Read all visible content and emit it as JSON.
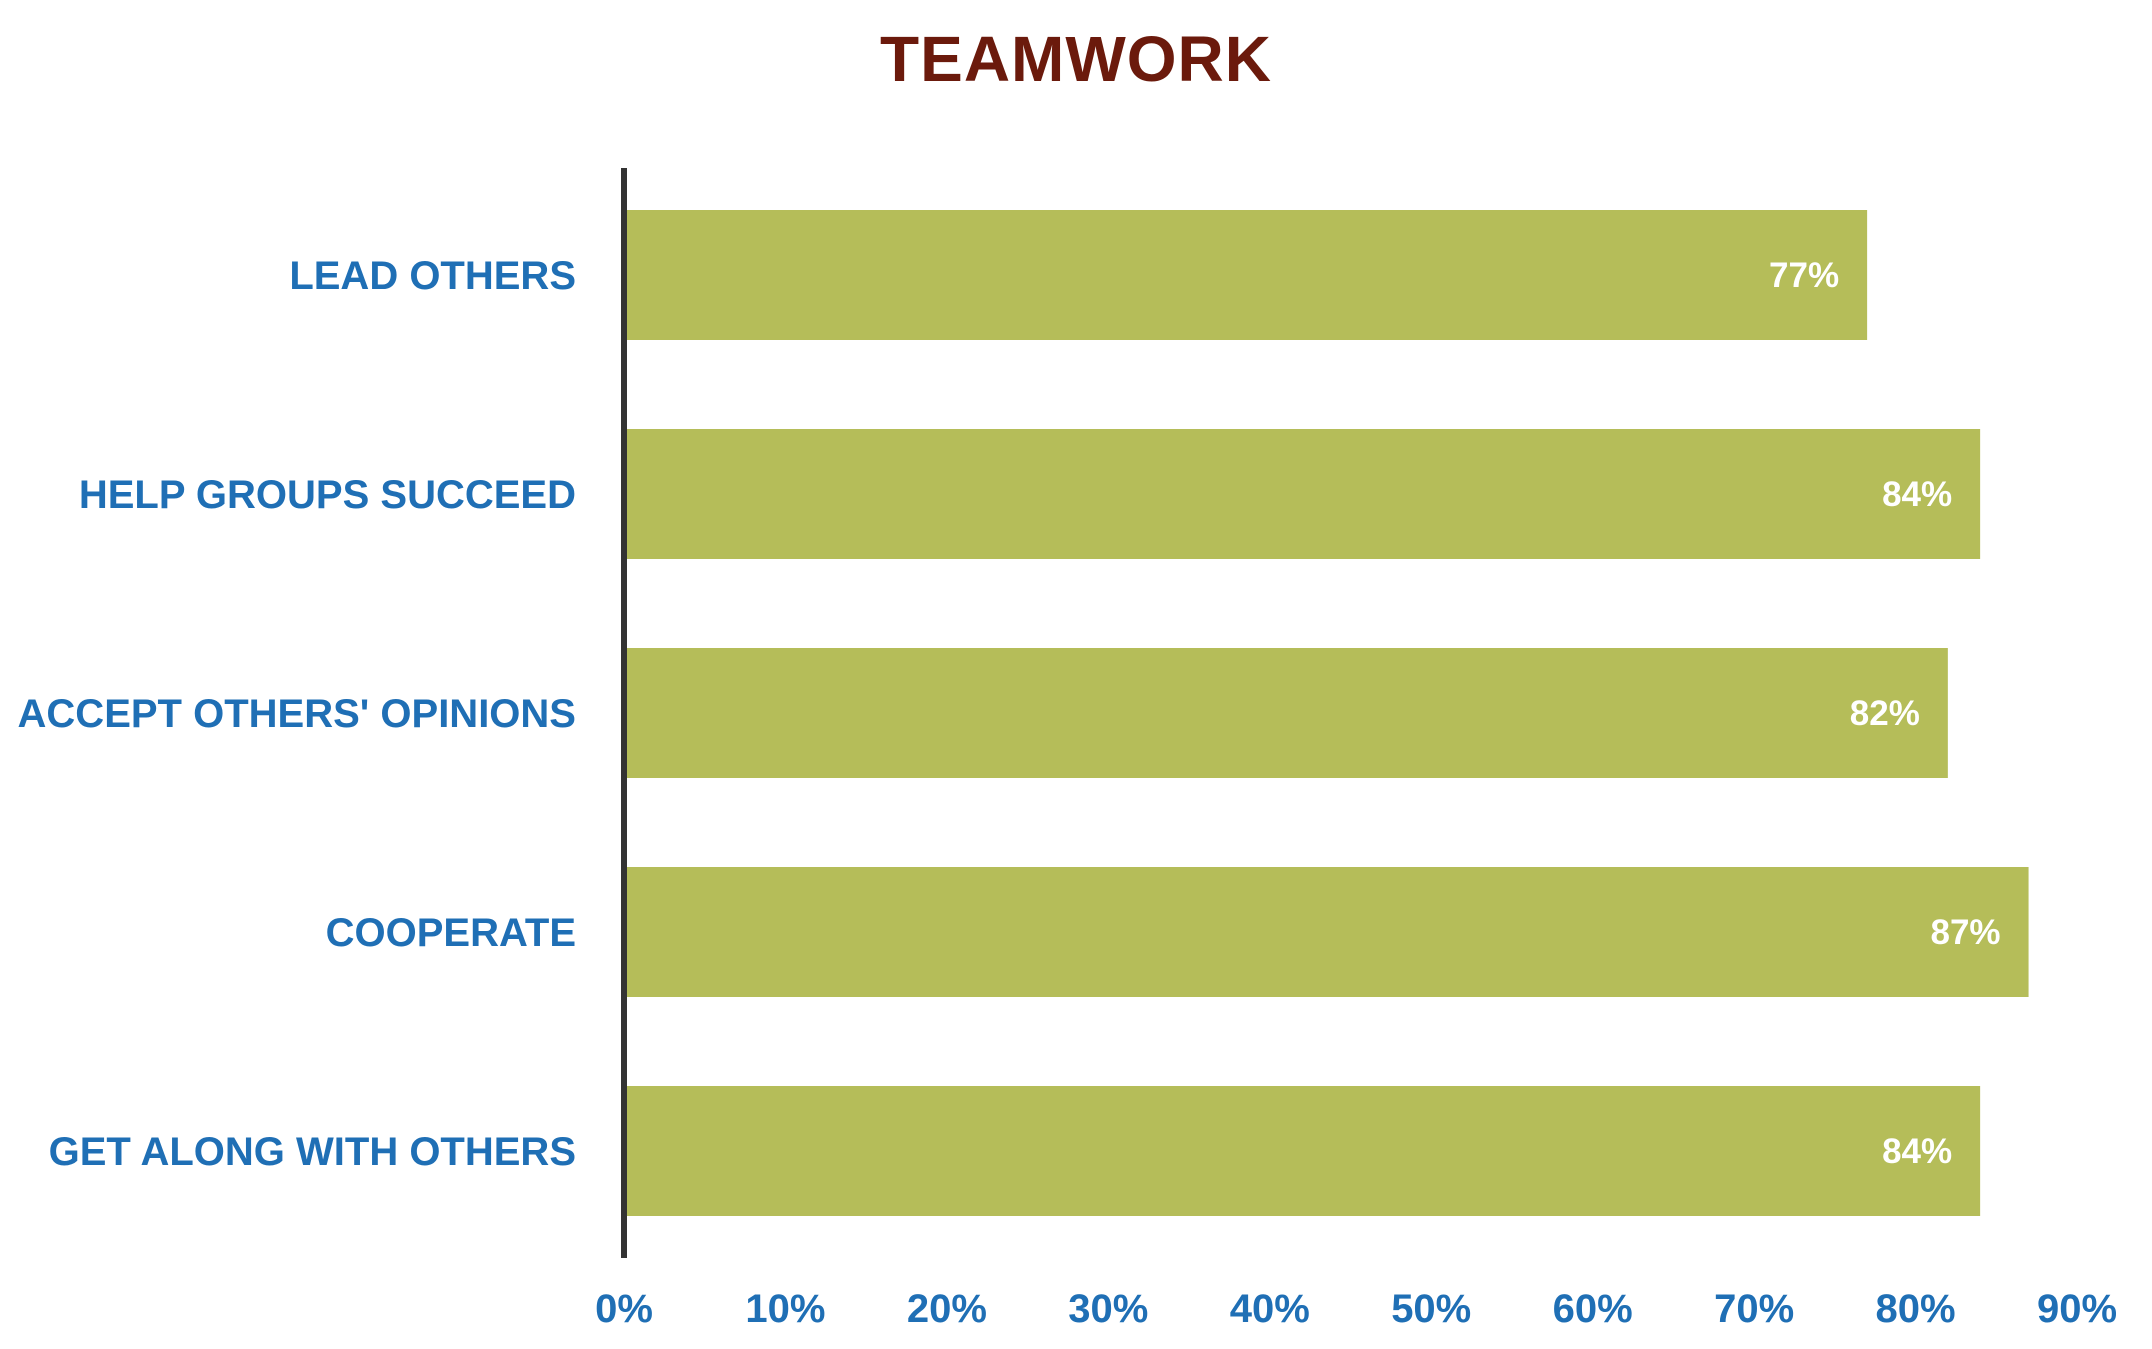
{
  "chart_data": {
    "type": "bar",
    "orientation": "horizontal",
    "title": "TEAMWORK",
    "categories": [
      "LEAD OTHERS",
      "HELP GROUPS SUCCEED",
      "ACCEPT OTHERS' OPINIONS",
      "COOPERATE",
      "GET ALONG WITH OTHERS"
    ],
    "values": [
      77,
      84,
      82,
      87,
      84
    ],
    "data_labels": [
      "77%",
      "84%",
      "82%",
      "87%",
      "84%"
    ],
    "x_ticks": [
      "0%",
      "10%",
      "20%",
      "30%",
      "40%",
      "50%",
      "60%",
      "70%",
      "80%",
      "90%"
    ],
    "xlim": [
      0,
      90
    ],
    "xlabel": "",
    "ylabel": "",
    "grid": false,
    "legend": "none",
    "colors": {
      "bar": "#b5bd59",
      "title": "#6b1a0c",
      "labels": "#1f6fb5",
      "data_label": "#ffffff",
      "axis": "#333333"
    }
  }
}
